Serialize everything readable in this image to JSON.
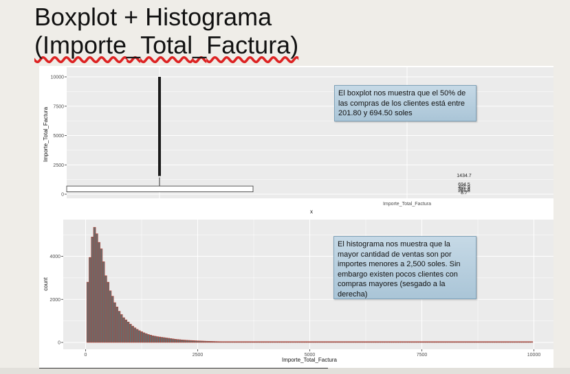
{
  "slide": {
    "title_line1": "Boxplot + Histograma",
    "title_line2_open": "(Importe",
    "title_line2_sep1": "_",
    "title_line2_mid": "Total",
    "title_line2_sep2": "_",
    "title_line2_end": "Factura)"
  },
  "notes": {
    "boxplot": "El boxplot nos muestra que el 50% de las compras de los clientes está entre 201.80 y 694.50 soles",
    "histogram": "El histograma nos muestra que la mayor cantidad de ventas son por importes menores a 2,500 soles. Sin embargo existen pocos clientes con compras mayores (sesgado a la derecha)"
  },
  "colors": {
    "panel_bg": "#ebebeb",
    "grid": "#ffffff",
    "hist_fill": "#6b6b6b",
    "hist_outline": "#c0392b",
    "note_border": "#7ea1b8"
  },
  "chart_data": [
    {
      "type": "boxplot",
      "xlabel": "x",
      "ylabel": "Importe_Total_Factura",
      "ylim": [
        0,
        10000
      ],
      "yticks": [
        0,
        2500,
        5000,
        7500,
        10000
      ],
      "ytick_labels": [
        "0",
        "2500",
        "5000",
        "7500",
        "10000"
      ],
      "grid": true,
      "box": {
        "q1": 201.8,
        "q3": 694.5,
        "whisker_high": 1434.7,
        "outliers_max": 10000
      },
      "stats_labels": [
        "1434.7",
        "694.5",
        "401.9",
        "321.8",
        "201.8",
        "8.7"
      ],
      "stats_caption": "Importe_Total_Factura"
    },
    {
      "type": "histogram",
      "xlabel": "Importe_Total_Factura",
      "ylabel": "count",
      "xlim": [
        0,
        10000
      ],
      "ylim": [
        0,
        5000
      ],
      "xticks": [
        0,
        2500,
        5000,
        7500,
        10000
      ],
      "xtick_labels": [
        "0",
        "2500",
        "5000",
        "7500",
        "10000"
      ],
      "yticks": [
        0,
        2000,
        4000
      ],
      "ytick_labels": [
        "0",
        "2000",
        "4000"
      ],
      "grid": true,
      "bins": [
        {
          "x": 50,
          "count": 2800
        },
        {
          "x": 100,
          "count": 3950
        },
        {
          "x": 150,
          "count": 4900
        },
        {
          "x": 200,
          "count": 5350
        },
        {
          "x": 250,
          "count": 5050
        },
        {
          "x": 300,
          "count": 4650
        },
        {
          "x": 350,
          "count": 4350
        },
        {
          "x": 400,
          "count": 3750
        },
        {
          "x": 450,
          "count": 3100
        },
        {
          "x": 500,
          "count": 2800
        },
        {
          "x": 550,
          "count": 2400
        },
        {
          "x": 600,
          "count": 2150
        },
        {
          "x": 650,
          "count": 1850
        },
        {
          "x": 700,
          "count": 1650
        },
        {
          "x": 750,
          "count": 1450
        },
        {
          "x": 800,
          "count": 1300
        },
        {
          "x": 850,
          "count": 1150
        },
        {
          "x": 900,
          "count": 1050
        },
        {
          "x": 950,
          "count": 950
        },
        {
          "x": 1000,
          "count": 850
        },
        {
          "x": 1050,
          "count": 760
        },
        {
          "x": 1100,
          "count": 680
        },
        {
          "x": 1150,
          "count": 610
        },
        {
          "x": 1200,
          "count": 550
        },
        {
          "x": 1250,
          "count": 500
        },
        {
          "x": 1300,
          "count": 450
        },
        {
          "x": 1350,
          "count": 410
        },
        {
          "x": 1400,
          "count": 370
        },
        {
          "x": 1450,
          "count": 340
        },
        {
          "x": 1500,
          "count": 310
        },
        {
          "x": 1550,
          "count": 290
        },
        {
          "x": 1600,
          "count": 270
        },
        {
          "x": 1650,
          "count": 255
        },
        {
          "x": 1700,
          "count": 240
        },
        {
          "x": 1750,
          "count": 225
        },
        {
          "x": 1800,
          "count": 210
        },
        {
          "x": 1850,
          "count": 195
        },
        {
          "x": 1900,
          "count": 180
        },
        {
          "x": 1950,
          "count": 165
        },
        {
          "x": 2000,
          "count": 150
        },
        {
          "x": 2050,
          "count": 140
        },
        {
          "x": 2100,
          "count": 130
        },
        {
          "x": 2150,
          "count": 120
        },
        {
          "x": 2200,
          "count": 112
        },
        {
          "x": 2250,
          "count": 105
        },
        {
          "x": 2300,
          "count": 98
        },
        {
          "x": 2350,
          "count": 92
        },
        {
          "x": 2400,
          "count": 86
        },
        {
          "x": 2450,
          "count": 80
        },
        {
          "x": 2500,
          "count": 75
        },
        {
          "x": 2550,
          "count": 70
        },
        {
          "x": 2600,
          "count": 66
        },
        {
          "x": 2650,
          "count": 62
        },
        {
          "x": 2700,
          "count": 58
        },
        {
          "x": 2750,
          "count": 55
        },
        {
          "x": 2800,
          "count": 52
        },
        {
          "x": 2850,
          "count": 49
        },
        {
          "x": 2900,
          "count": 46
        },
        {
          "x": 2950,
          "count": 43
        },
        {
          "x": 3000,
          "count": 40
        },
        {
          "x": 3050,
          "count": 38
        },
        {
          "x": 3100,
          "count": 36
        },
        {
          "x": 3150,
          "count": 34
        },
        {
          "x": 3200,
          "count": 32
        },
        {
          "x": 3250,
          "count": 30
        },
        {
          "x": 3300,
          "count": 29
        },
        {
          "x": 3350,
          "count": 28
        },
        {
          "x": 3400,
          "count": 27
        },
        {
          "x": 3450,
          "count": 26
        },
        {
          "x": 3500,
          "count": 25
        },
        {
          "x": 3550,
          "count": 24
        },
        {
          "x": 3600,
          "count": 23
        },
        {
          "x": 3650,
          "count": 22
        },
        {
          "x": 3700,
          "count": 21
        },
        {
          "x": 3750,
          "count": 20
        },
        {
          "x": 3800,
          "count": 19
        },
        {
          "x": 3850,
          "count": 18
        },
        {
          "x": 3900,
          "count": 17
        },
        {
          "x": 3950,
          "count": 16
        },
        {
          "x": 4000,
          "count": 15
        },
        {
          "x": 4050,
          "count": 15
        },
        {
          "x": 4100,
          "count": 14
        },
        {
          "x": 4150,
          "count": 14
        },
        {
          "x": 4200,
          "count": 13
        },
        {
          "x": 4250,
          "count": 13
        },
        {
          "x": 4300,
          "count": 12
        },
        {
          "x": 4350,
          "count": 12
        },
        {
          "x": 4400,
          "count": 11
        },
        {
          "x": 4450,
          "count": 11
        },
        {
          "x": 4500,
          "count": 10
        },
        {
          "x": 4550,
          "count": 10
        },
        {
          "x": 4600,
          "count": 10
        },
        {
          "x": 4650,
          "count": 9
        },
        {
          "x": 4700,
          "count": 9
        },
        {
          "x": 4750,
          "count": 9
        },
        {
          "x": 4800,
          "count": 8
        },
        {
          "x": 4850,
          "count": 8
        },
        {
          "x": 4900,
          "count": 8
        },
        {
          "x": 4950,
          "count": 7
        },
        {
          "x": 5000,
          "count": 7
        },
        {
          "x": 5050,
          "count": 7
        },
        {
          "x": 5100,
          "count": 7
        },
        {
          "x": 5150,
          "count": 6
        },
        {
          "x": 5200,
          "count": 6
        },
        {
          "x": 5250,
          "count": 6
        },
        {
          "x": 5300,
          "count": 6
        },
        {
          "x": 5350,
          "count": 6
        },
        {
          "x": 5400,
          "count": 5
        },
        {
          "x": 5450,
          "count": 5
        },
        {
          "x": 5500,
          "count": 5
        },
        {
          "x": 5550,
          "count": 5
        },
        {
          "x": 5600,
          "count": 5
        },
        {
          "x": 5650,
          "count": 5
        },
        {
          "x": 5700,
          "count": 4
        },
        {
          "x": 5750,
          "count": 4
        },
        {
          "x": 5800,
          "count": 4
        },
        {
          "x": 5850,
          "count": 4
        },
        {
          "x": 5900,
          "count": 4
        },
        {
          "x": 5950,
          "count": 4
        },
        {
          "x": 6000,
          "count": 4
        },
        {
          "x": 6050,
          "count": 4
        },
        {
          "x": 6100,
          "count": 3
        },
        {
          "x": 6150,
          "count": 3
        },
        {
          "x": 6200,
          "count": 3
        },
        {
          "x": 6250,
          "count": 3
        },
        {
          "x": 6300,
          "count": 3
        },
        {
          "x": 6350,
          "count": 3
        },
        {
          "x": 6400,
          "count": 3
        },
        {
          "x": 6450,
          "count": 3
        },
        {
          "x": 6500,
          "count": 3
        },
        {
          "x": 6550,
          "count": 3
        },
        {
          "x": 6600,
          "count": 3
        },
        {
          "x": 6650,
          "count": 3
        },
        {
          "x": 6700,
          "count": 2
        },
        {
          "x": 6750,
          "count": 2
        },
        {
          "x": 6800,
          "count": 2
        },
        {
          "x": 6850,
          "count": 2
        },
        {
          "x": 6900,
          "count": 2
        },
        {
          "x": 6950,
          "count": 2
        },
        {
          "x": 7000,
          "count": 2
        },
        {
          "x": 7050,
          "count": 2
        },
        {
          "x": 7100,
          "count": 2
        },
        {
          "x": 7150,
          "count": 2
        },
        {
          "x": 7200,
          "count": 2
        },
        {
          "x": 7250,
          "count": 2
        },
        {
          "x": 7300,
          "count": 2
        },
        {
          "x": 7350,
          "count": 2
        },
        {
          "x": 7400,
          "count": 2
        },
        {
          "x": 7450,
          "count": 2
        },
        {
          "x": 7500,
          "count": 2
        },
        {
          "x": 7550,
          "count": 2
        },
        {
          "x": 7600,
          "count": 2
        },
        {
          "x": 7650,
          "count": 2
        },
        {
          "x": 7700,
          "count": 1
        },
        {
          "x": 7750,
          "count": 1
        },
        {
          "x": 7800,
          "count": 1
        },
        {
          "x": 7850,
          "count": 1
        },
        {
          "x": 7900,
          "count": 1
        },
        {
          "x": 7950,
          "count": 1
        },
        {
          "x": 8000,
          "count": 1
        },
        {
          "x": 8050,
          "count": 1
        },
        {
          "x": 8100,
          "count": 1
        },
        {
          "x": 8150,
          "count": 1
        },
        {
          "x": 8200,
          "count": 1
        },
        {
          "x": 8250,
          "count": 1
        },
        {
          "x": 8300,
          "count": 1
        },
        {
          "x": 8350,
          "count": 1
        },
        {
          "x": 8400,
          "count": 1
        },
        {
          "x": 8450,
          "count": 1
        },
        {
          "x": 8500,
          "count": 1
        },
        {
          "x": 8550,
          "count": 1
        },
        {
          "x": 8600,
          "count": 1
        },
        {
          "x": 8650,
          "count": 1
        },
        {
          "x": 8700,
          "count": 1
        },
        {
          "x": 8750,
          "count": 1
        },
        {
          "x": 8800,
          "count": 1
        },
        {
          "x": 8850,
          "count": 1
        },
        {
          "x": 8900,
          "count": 1
        },
        {
          "x": 8950,
          "count": 1
        },
        {
          "x": 9000,
          "count": 1
        },
        {
          "x": 9050,
          "count": 1
        },
        {
          "x": 9100,
          "count": 1
        },
        {
          "x": 9150,
          "count": 1
        },
        {
          "x": 9200,
          "count": 1
        },
        {
          "x": 9250,
          "count": 1
        },
        {
          "x": 9300,
          "count": 1
        },
        {
          "x": 9350,
          "count": 1
        },
        {
          "x": 9400,
          "count": 1
        },
        {
          "x": 9450,
          "count": 1
        },
        {
          "x": 9500,
          "count": 1
        },
        {
          "x": 9550,
          "count": 1
        },
        {
          "x": 9600,
          "count": 1
        },
        {
          "x": 9650,
          "count": 1
        },
        {
          "x": 9700,
          "count": 1
        },
        {
          "x": 9750,
          "count": 1
        },
        {
          "x": 9800,
          "count": 1
        },
        {
          "x": 9850,
          "count": 1
        },
        {
          "x": 9900,
          "count": 1
        },
        {
          "x": 9950,
          "count": 1
        }
      ]
    }
  ]
}
